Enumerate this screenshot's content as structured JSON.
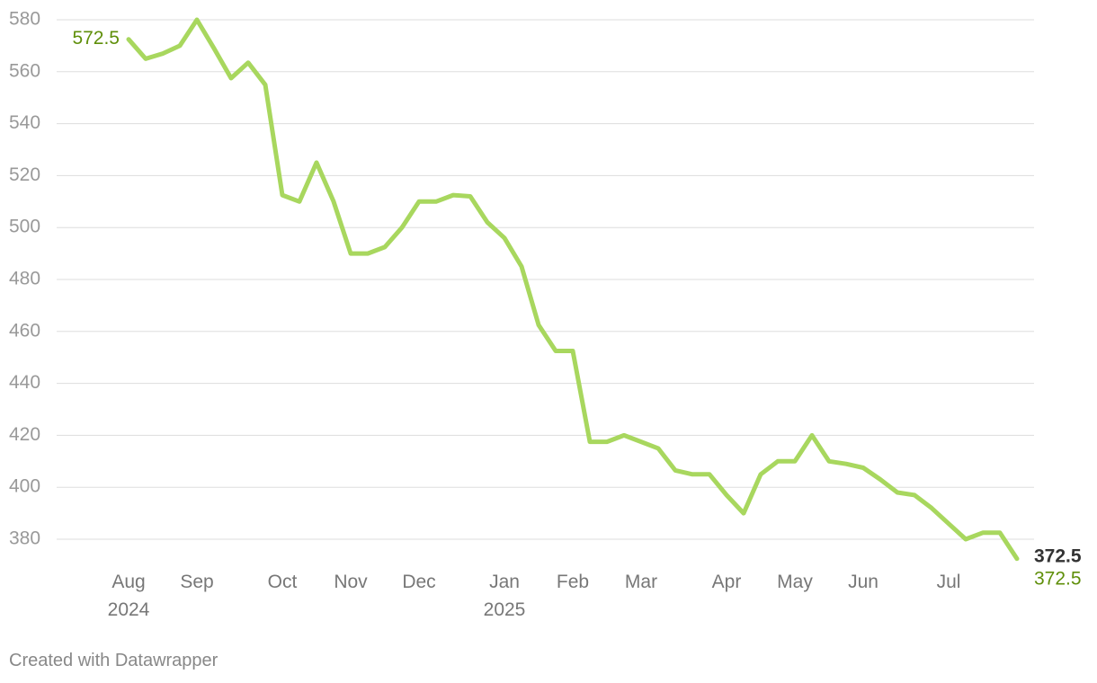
{
  "chart_data": {
    "type": "line",
    "categories": [
      "Aug 2024",
      null,
      null,
      null,
      "Sep",
      null,
      null,
      null,
      null,
      "Oct",
      null,
      null,
      null,
      "Nov",
      null,
      null,
      null,
      "Dec",
      null,
      null,
      null,
      null,
      "Jan 2025",
      null,
      null,
      null,
      "Feb",
      null,
      null,
      null,
      "Mar",
      null,
      null,
      null,
      null,
      "Apr",
      null,
      null,
      null,
      "May",
      null,
      null,
      null,
      "Jun",
      null,
      null,
      null,
      null,
      "Jul",
      null,
      null,
      null,
      null
    ],
    "series": [
      {
        "name": "Price",
        "color": "#a8d75e",
        "values": [
          572.5,
          565,
          567,
          570,
          580,
          569,
          557.5,
          563.5,
          555,
          512.5,
          510,
          525,
          510,
          490,
          490,
          492.5,
          500,
          510,
          510,
          512.5,
          512,
          502,
          496,
          485,
          462.5,
          452.5,
          452.5,
          417.5,
          417.5,
          420,
          417.5,
          415,
          406.5,
          405,
          405,
          397,
          390,
          405,
          410,
          410,
          420,
          410,
          409,
          407.5,
          403,
          398,
          397,
          392,
          386,
          380,
          382.5,
          382.5,
          372.5
        ]
      }
    ],
    "ylim": [
      370,
      580
    ],
    "yticks": [
      380,
      400,
      420,
      440,
      460,
      480,
      500,
      520,
      540,
      560,
      580
    ],
    "grid": true,
    "footer": "Created with Datawrapper"
  }
}
